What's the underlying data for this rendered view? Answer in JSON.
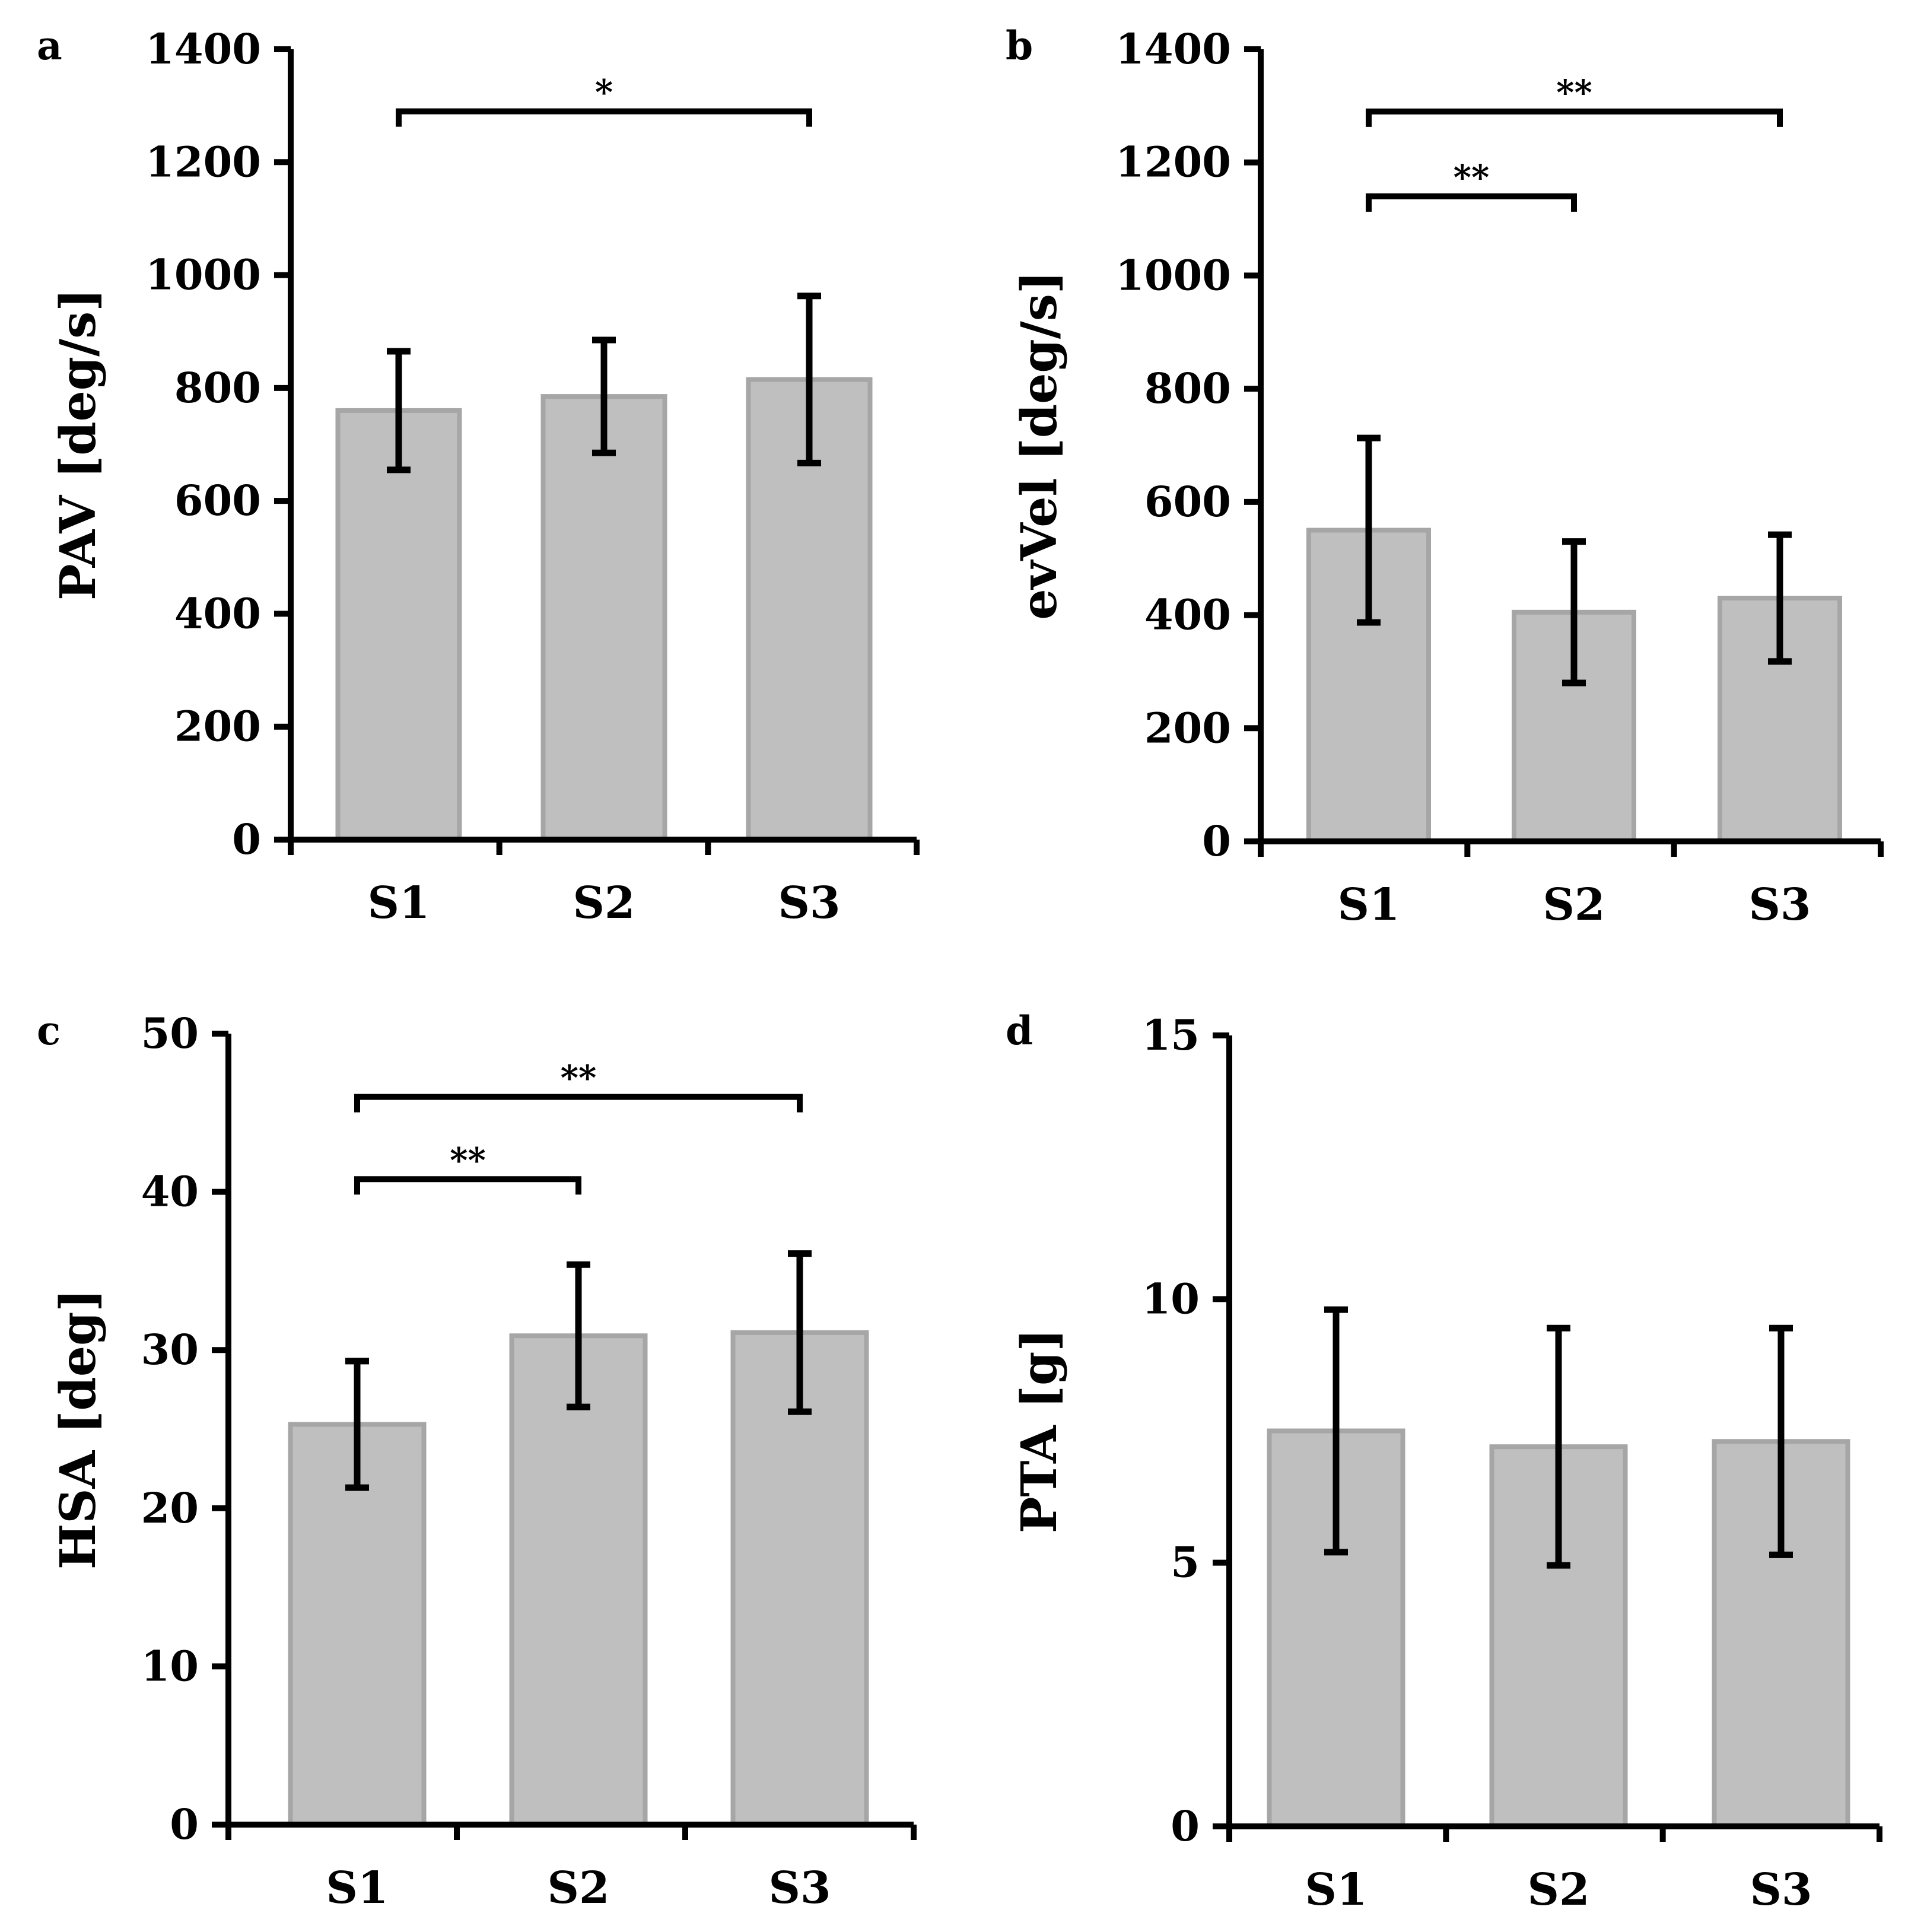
{
  "figure": {
    "background": "#ffffff"
  },
  "style": {
    "bar_fill": "#bfbfbf",
    "bar_edge": "#a6a6a6",
    "ink": "#000000"
  },
  "chart_data": [
    {
      "panel": "a",
      "type": "bar",
      "categories": [
        "S1",
        "S2",
        "S3"
      ],
      "values": [
        760,
        785,
        815
      ],
      "errors": [
        105,
        100,
        148
      ],
      "ylabel": "PAV [deg/s]",
      "ylim": [
        0,
        1400
      ],
      "yticks": [
        0,
        200,
        400,
        600,
        800,
        1000,
        1200,
        1400
      ],
      "significance": [
        {
          "from": 0,
          "to": 2,
          "y": 1290,
          "label": "*"
        }
      ]
    },
    {
      "panel": "b",
      "type": "bar",
      "categories": [
        "S1",
        "S2",
        "S3"
      ],
      "values": [
        550,
        405,
        430
      ],
      "errors": [
        163,
        125,
        112
      ],
      "ylabel": "evVel [deg/s]",
      "ylim": [
        0,
        1400
      ],
      "yticks": [
        0,
        200,
        400,
        600,
        800,
        1000,
        1200,
        1400
      ],
      "significance": [
        {
          "from": 0,
          "to": 2,
          "y": 1290,
          "label": "**"
        },
        {
          "from": 0,
          "to": 1,
          "y": 1140,
          "label": "**"
        }
      ]
    },
    {
      "panel": "c",
      "type": "bar",
      "categories": [
        "S1",
        "S2",
        "S3"
      ],
      "values": [
        25.3,
        30.9,
        31.1
      ],
      "errors": [
        4.0,
        4.5,
        5.0
      ],
      "ylabel": "HSA [deg]",
      "ylim": [
        0,
        50
      ],
      "yticks": [
        0,
        10,
        20,
        30,
        40,
        50
      ],
      "significance": [
        {
          "from": 0,
          "to": 2,
          "y": 46,
          "label": "**"
        },
        {
          "from": 0,
          "to": 1,
          "y": 40.8,
          "label": "**"
        }
      ]
    },
    {
      "panel": "d",
      "type": "bar",
      "categories": [
        "S1",
        "S2",
        "S3"
      ],
      "values": [
        7.5,
        7.2,
        7.3
      ],
      "errors": [
        2.3,
        2.25,
        2.15
      ],
      "ylabel": "PTA [g]",
      "ylim": [
        0,
        15
      ],
      "yticks": [
        0,
        5,
        10,
        15
      ],
      "significance": []
    }
  ]
}
